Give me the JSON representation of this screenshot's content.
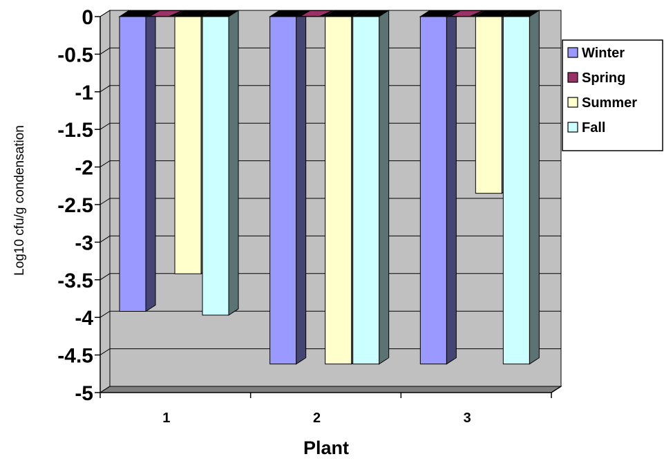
{
  "chart_data": {
    "type": "bar",
    "title": "",
    "xlabel": "Plant",
    "ylabel": "Log10 cfu/g condensation",
    "ylim": [
      -5,
      0
    ],
    "yticks": [
      "0",
      "-0.5",
      "-1",
      "-1.5",
      "-2",
      "-2.5",
      "-3",
      "-3.5",
      "-4",
      "-4.5",
      "-5"
    ],
    "categories": [
      "1",
      "2",
      "3"
    ],
    "series": [
      {
        "name": "Winter",
        "color": "#9999ff",
        "values": [
          -3.92,
          -4.62,
          -4.62
        ]
      },
      {
        "name": "Spring",
        "color": "#993366",
        "values": [
          0,
          0,
          0
        ]
      },
      {
        "name": "Summer",
        "color": "#ffffcc",
        "values": [
          -3.42,
          -4.62,
          -2.35
        ]
      },
      {
        "name": "Fall",
        "color": "#ccffff",
        "values": [
          -3.97,
          -4.62,
          -4.62
        ]
      }
    ],
    "grid": true,
    "legend": "right",
    "wall_color": "#c0c0c0",
    "floor_color": "#808080"
  }
}
